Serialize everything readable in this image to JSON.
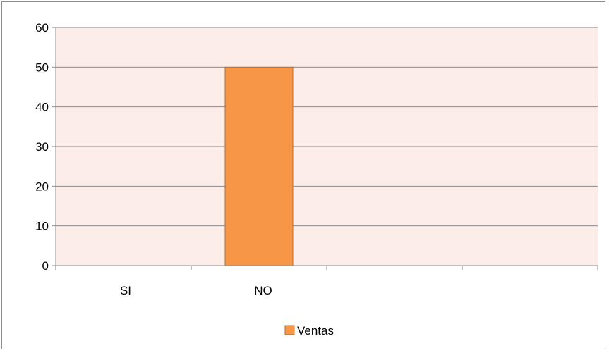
{
  "chart_data": {
    "type": "bar",
    "categories": [
      "SI",
      "NO",
      "",
      ""
    ],
    "series": [
      {
        "name": "Ventas",
        "values": [
          0,
          50,
          0,
          0
        ],
        "color": "#F79646",
        "stroke": "#B66D31"
      }
    ],
    "ylim": [
      0,
      60
    ],
    "yticks": [
      "0",
      "10",
      "20",
      "30",
      "40",
      "50",
      "60"
    ],
    "grid": true,
    "legend": {
      "position": "bottom",
      "entries": [
        "Ventas"
      ]
    },
    "plot_background": "#FDEDE9",
    "gridline_color": "#8c8c8c"
  }
}
